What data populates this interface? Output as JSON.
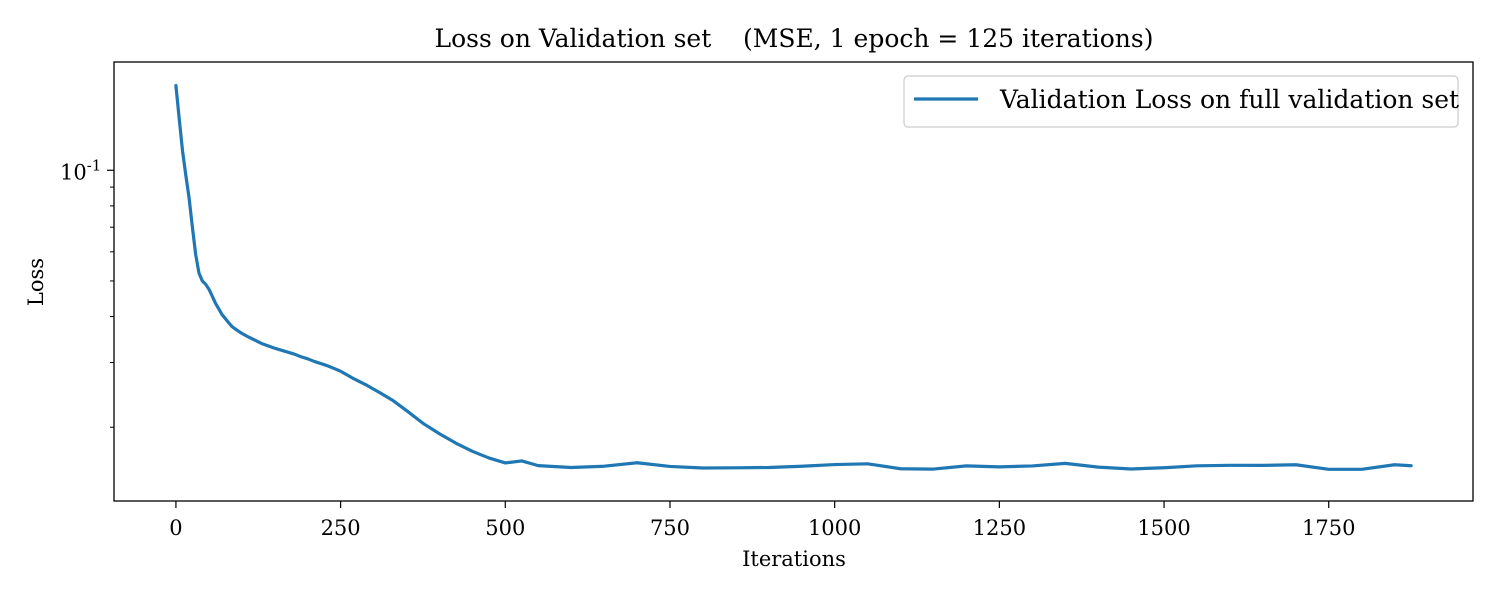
{
  "chart_data": {
    "type": "line",
    "title": "Loss on Validation set    (MSE, 1 epoch = 125 iterations)",
    "xlabel": "Iterations",
    "ylabel": "Loss",
    "xlim": [
      -94,
      1969
    ],
    "ylim": [
      0.0126,
      0.197
    ],
    "y_scale": "log",
    "grid": false,
    "legend_position": "upper right",
    "x_ticks": [
      0,
      250,
      500,
      750,
      1000,
      1250,
      1500,
      1750
    ],
    "x_tick_labels": [
      "0",
      "250",
      "500",
      "750",
      "1000",
      "1250",
      "1500",
      "1750"
    ],
    "y_major_ticks": [
      0.1
    ],
    "y_major_tick_labels": [
      "10",
      "-1"
    ],
    "y_minor_ticks": [
      0.02,
      0.03,
      0.04,
      0.05,
      0.06,
      0.07,
      0.08,
      0.09
    ],
    "series": [
      {
        "name": "Validation Loss on full validation set",
        "color": "#1f77b4",
        "x": [
          0,
          5,
          10,
          15,
          20,
          25,
          30,
          35,
          40,
          45,
          50,
          55,
          60,
          65,
          70,
          75,
          80,
          85,
          90,
          95,
          100,
          110,
          120,
          130,
          140,
          150,
          160,
          170,
          180,
          190,
          200,
          210,
          220,
          230,
          240,
          250,
          270,
          290,
          310,
          330,
          350,
          375,
          400,
          425,
          450,
          475,
          500,
          525,
          550,
          600,
          650,
          700,
          750,
          800,
          850,
          900,
          950,
          1000,
          1050,
          1100,
          1150,
          1200,
          1250,
          1300,
          1350,
          1400,
          1450,
          1500,
          1550,
          1600,
          1650,
          1700,
          1750,
          1800,
          1850,
          1875
        ],
        "y": [
          0.17,
          0.138,
          0.113,
          0.097,
          0.084,
          0.07,
          0.059,
          0.0525,
          0.05,
          0.049,
          0.0475,
          0.0455,
          0.0435,
          0.042,
          0.0405,
          0.0395,
          0.0385,
          0.0376,
          0.037,
          0.0365,
          0.036,
          0.0352,
          0.0345,
          0.0338,
          0.0333,
          0.0328,
          0.0324,
          0.032,
          0.0316,
          0.0311,
          0.0307,
          0.0302,
          0.0298,
          0.0294,
          0.0289,
          0.0284,
          0.0271,
          0.026,
          0.0248,
          0.0236,
          0.0222,
          0.0205,
          0.0192,
          0.0181,
          0.0172,
          0.0165,
          0.0161,
          0.0159,
          0.0158,
          0.0157,
          0.0156,
          0.0157,
          0.0156,
          0.0157,
          0.0156,
          0.0156,
          0.0157,
          0.0156,
          0.0157,
          0.0156,
          0.0156,
          0.0157,
          0.0156,
          0.0156,
          0.0157,
          0.0156,
          0.0157,
          0.0156,
          0.0156,
          0.0157,
          0.0156,
          0.0157,
          0.0156,
          0.0156,
          0.0157,
          0.0157
        ]
      }
    ]
  }
}
